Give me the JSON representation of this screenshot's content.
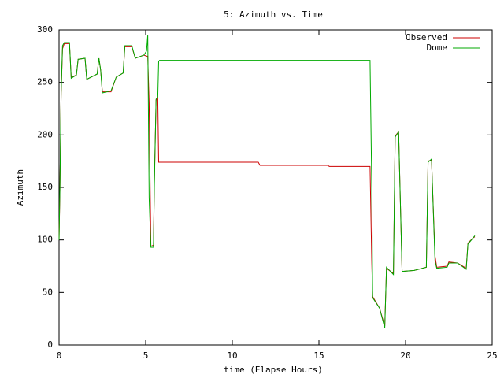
{
  "chart_data": {
    "type": "line",
    "title": "5: Azimuth vs. Time",
    "x_label": "time (Elapse Hours)",
    "y_label": "Azimuth",
    "x": [
      0,
      0.05,
      0.12,
      0.2,
      0.3,
      0.6,
      0.7,
      1.0,
      1.1,
      1.5,
      1.6,
      2.2,
      2.3,
      2.4,
      2.5,
      3.0,
      3.3,
      3.7,
      3.8,
      4.2,
      4.4,
      4.9,
      5.05,
      5.12,
      5.2,
      5.3,
      5.45,
      5.5,
      5.6,
      5.7,
      5.75,
      5.8,
      11.5,
      11.6,
      15.5,
      15.6,
      17.95,
      18.05,
      18.1,
      18.5,
      18.8,
      18.9,
      19.3,
      19.4,
      19.6,
      19.8,
      20.5,
      21.2,
      21.3,
      21.5,
      21.7,
      21.8,
      22.4,
      22.5,
      23.0,
      23.5,
      23.6,
      23.9,
      24.0
    ],
    "series": [
      {
        "name": "Observed",
        "color": "#cc0000",
        "values": [
          100,
          148,
          240,
          282,
          287,
          287,
          255,
          257,
          272,
          273,
          253,
          258,
          273,
          262,
          241,
          241,
          255,
          259,
          284,
          284,
          273,
          276,
          275,
          275,
          230,
          94,
          95,
          155,
          233,
          235,
          174,
          174,
          174,
          171,
          171,
          170,
          170,
          78,
          46,
          35,
          18,
          73,
          68,
          199,
          203,
          70,
          71,
          74,
          175,
          176,
          85,
          74,
          75,
          79,
          78,
          73,
          97,
          102,
          103
        ]
      },
      {
        "name": "Dome",
        "color": "#00aa00",
        "values": [
          100,
          150,
          240,
          285,
          288,
          288,
          254,
          257,
          272,
          273,
          253,
          258,
          273,
          262,
          240,
          242,
          255,
          259,
          285,
          285,
          273,
          276,
          280,
          295,
          140,
          93,
          93,
          150,
          234,
          236,
          270,
          271,
          271,
          271,
          271,
          271,
          271,
          150,
          45,
          35,
          16,
          74,
          67,
          198,
          203,
          70,
          71,
          74,
          174,
          177,
          80,
          73,
          74,
          78,
          78,
          72,
          96,
          102,
          104
        ]
      }
    ],
    "xlim": [
      0,
      25
    ],
    "xticks": [
      0,
      5,
      10,
      15,
      20,
      25
    ],
    "ylim": [
      0,
      300
    ],
    "yticks": [
      0,
      50,
      100,
      150,
      200,
      250,
      300
    ],
    "grid": false,
    "legend": "upper right"
  }
}
